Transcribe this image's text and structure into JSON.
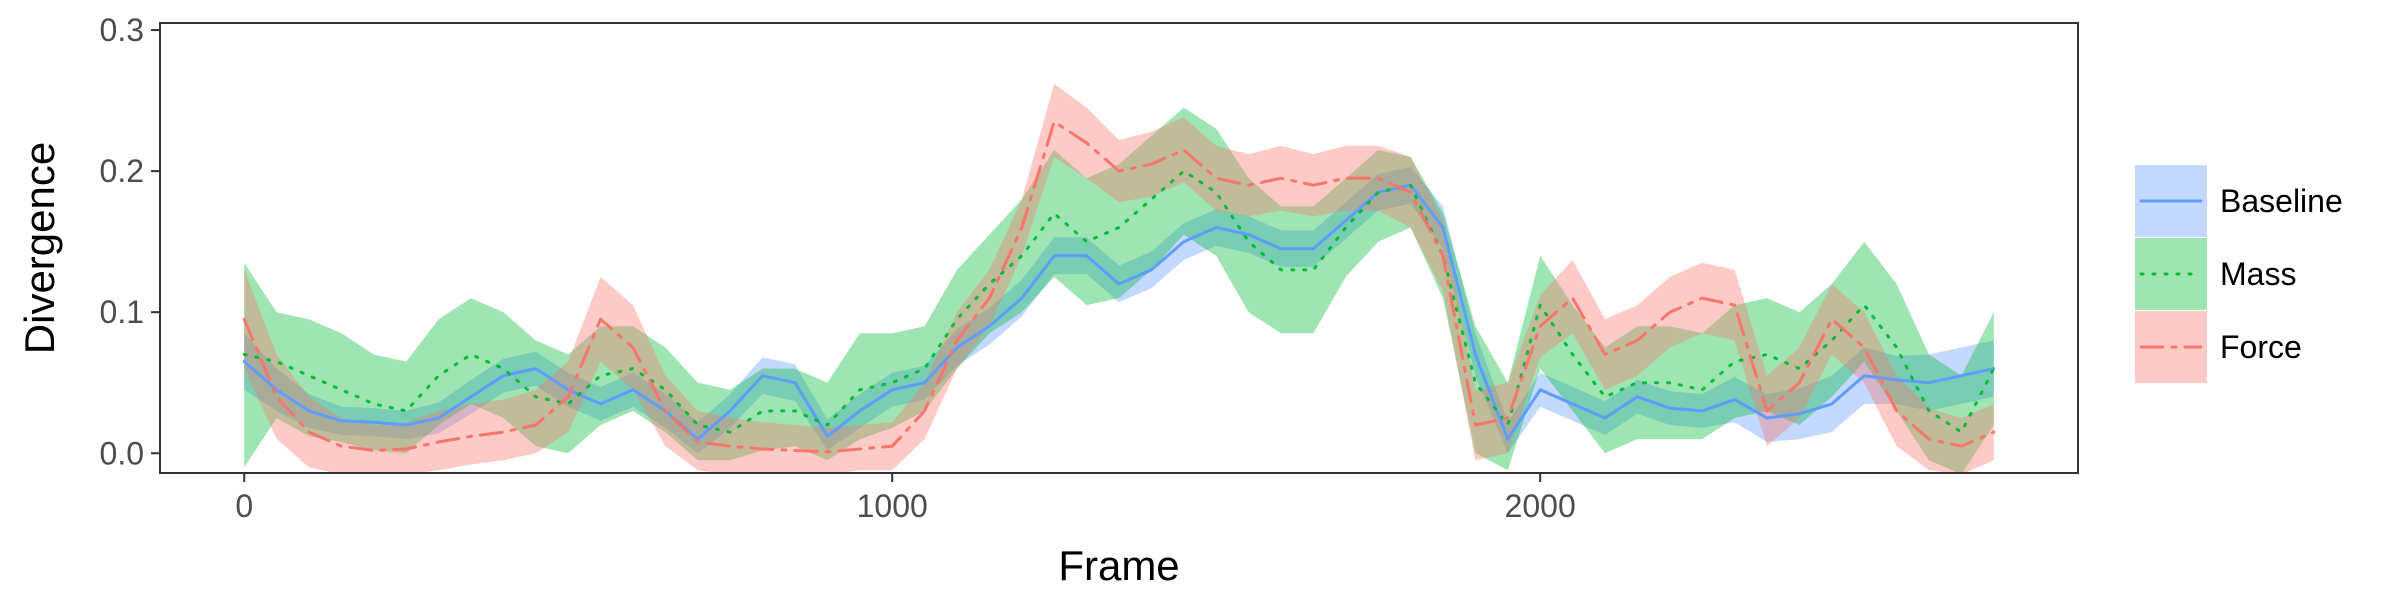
{
  "chart_data": {
    "type": "line",
    "xlabel": "Frame",
    "ylabel": "Divergence",
    "xlim": [
      -130,
      2830
    ],
    "ylim": [
      -0.014,
      0.305
    ],
    "xticks": [
      0,
      1000,
      2000
    ],
    "xtick_labels": [
      "0",
      "1000",
      "2000"
    ],
    "yticks": [
      0.0,
      0.1,
      0.2,
      0.3
    ],
    "ytick_labels": [
      "0.0",
      "0.1",
      "0.2",
      "0.3"
    ],
    "grid": false,
    "legend_position": "right",
    "series": [
      {
        "name": "Baseline",
        "color": "#619cff",
        "line_style": "solid",
        "x": [
          0,
          50,
          100,
          150,
          200,
          250,
          300,
          350,
          400,
          450,
          500,
          550,
          600,
          650,
          700,
          750,
          800,
          850,
          900,
          950,
          1000,
          1050,
          1100,
          1150,
          1200,
          1250,
          1300,
          1350,
          1400,
          1450,
          1500,
          1550,
          1600,
          1650,
          1700,
          1750,
          1800,
          1850,
          1900,
          1950,
          2000,
          2050,
          2100,
          2150,
          2200,
          2250,
          2300,
          2350,
          2400,
          2450,
          2500,
          2550,
          2600,
          2650,
          2700
        ],
        "y": [
          0.065,
          0.045,
          0.03,
          0.023,
          0.022,
          0.02,
          0.025,
          0.04,
          0.055,
          0.06,
          0.045,
          0.035,
          0.045,
          0.03,
          0.01,
          0.03,
          0.055,
          0.05,
          0.012,
          0.03,
          0.045,
          0.05,
          0.075,
          0.09,
          0.11,
          0.14,
          0.14,
          0.12,
          0.13,
          0.15,
          0.16,
          0.155,
          0.145,
          0.145,
          0.165,
          0.185,
          0.19,
          0.16,
          0.07,
          0.01,
          0.045,
          0.035,
          0.025,
          0.04,
          0.032,
          0.03,
          0.038,
          0.025,
          0.028,
          0.035,
          0.055,
          0.052,
          0.05,
          0.055,
          0.06
        ],
        "band_lower": [
          0.045,
          0.03,
          0.018,
          0.013,
          0.012,
          0.01,
          0.014,
          0.028,
          0.043,
          0.048,
          0.033,
          0.023,
          0.033,
          0.018,
          0.0,
          0.018,
          0.042,
          0.037,
          0.002,
          0.018,
          0.033,
          0.038,
          0.062,
          0.077,
          0.097,
          0.127,
          0.127,
          0.107,
          0.117,
          0.137,
          0.147,
          0.142,
          0.132,
          0.132,
          0.152,
          0.172,
          0.177,
          0.145,
          0.055,
          0.0,
          0.033,
          0.023,
          0.013,
          0.028,
          0.02,
          0.018,
          0.022,
          0.008,
          0.01,
          0.015,
          0.035,
          0.035,
          0.03,
          0.035,
          0.04
        ],
        "band_upper": [
          0.085,
          0.06,
          0.042,
          0.033,
          0.032,
          0.03,
          0.036,
          0.052,
          0.067,
          0.072,
          0.057,
          0.047,
          0.057,
          0.042,
          0.022,
          0.042,
          0.068,
          0.063,
          0.024,
          0.042,
          0.057,
          0.062,
          0.088,
          0.103,
          0.123,
          0.153,
          0.153,
          0.133,
          0.143,
          0.163,
          0.173,
          0.168,
          0.158,
          0.158,
          0.178,
          0.198,
          0.203,
          0.175,
          0.085,
          0.022,
          0.057,
          0.047,
          0.037,
          0.052,
          0.044,
          0.042,
          0.054,
          0.042,
          0.046,
          0.055,
          0.075,
          0.069,
          0.07,
          0.075,
          0.08
        ]
      },
      {
        "name": "Mass",
        "color": "#00ba38",
        "line_style": "dotted",
        "x": [
          0,
          50,
          100,
          150,
          200,
          250,
          300,
          350,
          400,
          450,
          500,
          550,
          600,
          650,
          700,
          750,
          800,
          850,
          900,
          950,
          1000,
          1050,
          1100,
          1150,
          1200,
          1250,
          1300,
          1350,
          1400,
          1450,
          1500,
          1550,
          1600,
          1650,
          1700,
          1750,
          1800,
          1850,
          1900,
          1950,
          2000,
          2050,
          2100,
          2150,
          2200,
          2250,
          2300,
          2350,
          2400,
          2450,
          2500,
          2550,
          2600,
          2650,
          2700
        ],
        "y": [
          0.07,
          0.065,
          0.055,
          0.045,
          0.035,
          0.03,
          0.055,
          0.07,
          0.06,
          0.04,
          0.035,
          0.055,
          0.06,
          0.045,
          0.02,
          0.015,
          0.03,
          0.03,
          0.02,
          0.045,
          0.05,
          0.06,
          0.095,
          0.12,
          0.14,
          0.17,
          0.15,
          0.16,
          0.18,
          0.2,
          0.185,
          0.15,
          0.13,
          0.13,
          0.16,
          0.185,
          0.19,
          0.14,
          0.05,
          0.02,
          0.105,
          0.07,
          0.04,
          0.05,
          0.05,
          0.045,
          0.065,
          0.07,
          0.06,
          0.08,
          0.105,
          0.075,
          0.03,
          0.015,
          0.06
        ],
        "band_lower": [
          -0.01,
          0.025,
          0.012,
          0.008,
          0.002,
          0.0,
          0.02,
          0.035,
          0.025,
          0.005,
          0.0,
          0.02,
          0.03,
          0.015,
          -0.005,
          -0.005,
          0.002,
          0.005,
          -0.005,
          0.01,
          0.018,
          0.03,
          0.06,
          0.085,
          0.1,
          0.125,
          0.105,
          0.11,
          0.13,
          0.155,
          0.14,
          0.1,
          0.085,
          0.085,
          0.125,
          0.15,
          0.16,
          0.11,
          0.0,
          -0.012,
          0.06,
          0.03,
          0.0,
          0.01,
          0.01,
          0.01,
          0.025,
          0.03,
          0.02,
          0.04,
          0.065,
          0.03,
          -0.005,
          -0.015,
          0.02
        ],
        "band_upper": [
          0.135,
          0.1,
          0.095,
          0.085,
          0.07,
          0.065,
          0.095,
          0.11,
          0.1,
          0.08,
          0.07,
          0.09,
          0.09,
          0.075,
          0.05,
          0.045,
          0.06,
          0.06,
          0.05,
          0.085,
          0.085,
          0.09,
          0.13,
          0.155,
          0.18,
          0.215,
          0.195,
          0.205,
          0.225,
          0.245,
          0.23,
          0.195,
          0.175,
          0.175,
          0.195,
          0.215,
          0.21,
          0.17,
          0.09,
          0.05,
          0.14,
          0.105,
          0.075,
          0.09,
          0.09,
          0.085,
          0.105,
          0.11,
          0.1,
          0.12,
          0.15,
          0.12,
          0.07,
          0.055,
          0.1
        ]
      },
      {
        "name": "Force",
        "color": "#f8766d",
        "line_style": "dashdot",
        "x": [
          0,
          50,
          100,
          150,
          200,
          250,
          300,
          350,
          400,
          450,
          500,
          550,
          600,
          650,
          700,
          750,
          800,
          850,
          900,
          950,
          1000,
          1050,
          1100,
          1150,
          1200,
          1250,
          1300,
          1350,
          1400,
          1450,
          1500,
          1550,
          1600,
          1650,
          1700,
          1750,
          1800,
          1850,
          1900,
          1950,
          2000,
          2050,
          2100,
          2150,
          2200,
          2250,
          2300,
          2350,
          2400,
          2450,
          2500,
          2550,
          2600,
          2650,
          2700
        ],
        "y": [
          0.095,
          0.04,
          0.015,
          0.005,
          0.002,
          0.003,
          0.008,
          0.012,
          0.015,
          0.02,
          0.04,
          0.095,
          0.075,
          0.03,
          0.008,
          0.005,
          0.003,
          0.002,
          0.001,
          0.003,
          0.005,
          0.03,
          0.08,
          0.11,
          0.16,
          0.235,
          0.22,
          0.2,
          0.205,
          0.215,
          0.195,
          0.19,
          0.195,
          0.19,
          0.195,
          0.195,
          0.185,
          0.14,
          0.02,
          0.025,
          0.09,
          0.11,
          0.07,
          0.08,
          0.1,
          0.11,
          0.105,
          0.03,
          0.05,
          0.095,
          0.075,
          0.03,
          0.01,
          0.005,
          0.015
        ],
        "band_lower": [
          0.06,
          0.01,
          -0.01,
          -0.015,
          -0.015,
          -0.015,
          -0.012,
          -0.008,
          -0.005,
          0.0,
          0.015,
          0.065,
          0.045,
          0.005,
          -0.012,
          -0.015,
          -0.015,
          -0.015,
          -0.015,
          -0.012,
          -0.012,
          0.01,
          0.06,
          0.09,
          0.14,
          0.21,
          0.195,
          0.178,
          0.182,
          0.192,
          0.172,
          0.168,
          0.172,
          0.168,
          0.172,
          0.172,
          0.16,
          0.115,
          -0.005,
          0.0,
          0.068,
          0.085,
          0.045,
          0.055,
          0.075,
          0.085,
          0.08,
          0.005,
          0.025,
          0.07,
          0.05,
          0.005,
          -0.012,
          -0.015,
          -0.005
        ],
        "band_upper": [
          0.13,
          0.07,
          0.04,
          0.025,
          0.02,
          0.022,
          0.03,
          0.035,
          0.038,
          0.045,
          0.065,
          0.125,
          0.105,
          0.055,
          0.03,
          0.025,
          0.022,
          0.02,
          0.018,
          0.02,
          0.022,
          0.05,
          0.1,
          0.13,
          0.18,
          0.262,
          0.245,
          0.222,
          0.228,
          0.238,
          0.218,
          0.212,
          0.218,
          0.212,
          0.218,
          0.218,
          0.21,
          0.165,
          0.045,
          0.05,
          0.112,
          0.137,
          0.095,
          0.105,
          0.125,
          0.135,
          0.13,
          0.055,
          0.075,
          0.12,
          0.1,
          0.055,
          0.032,
          0.025,
          0.035
        ]
      }
    ]
  }
}
